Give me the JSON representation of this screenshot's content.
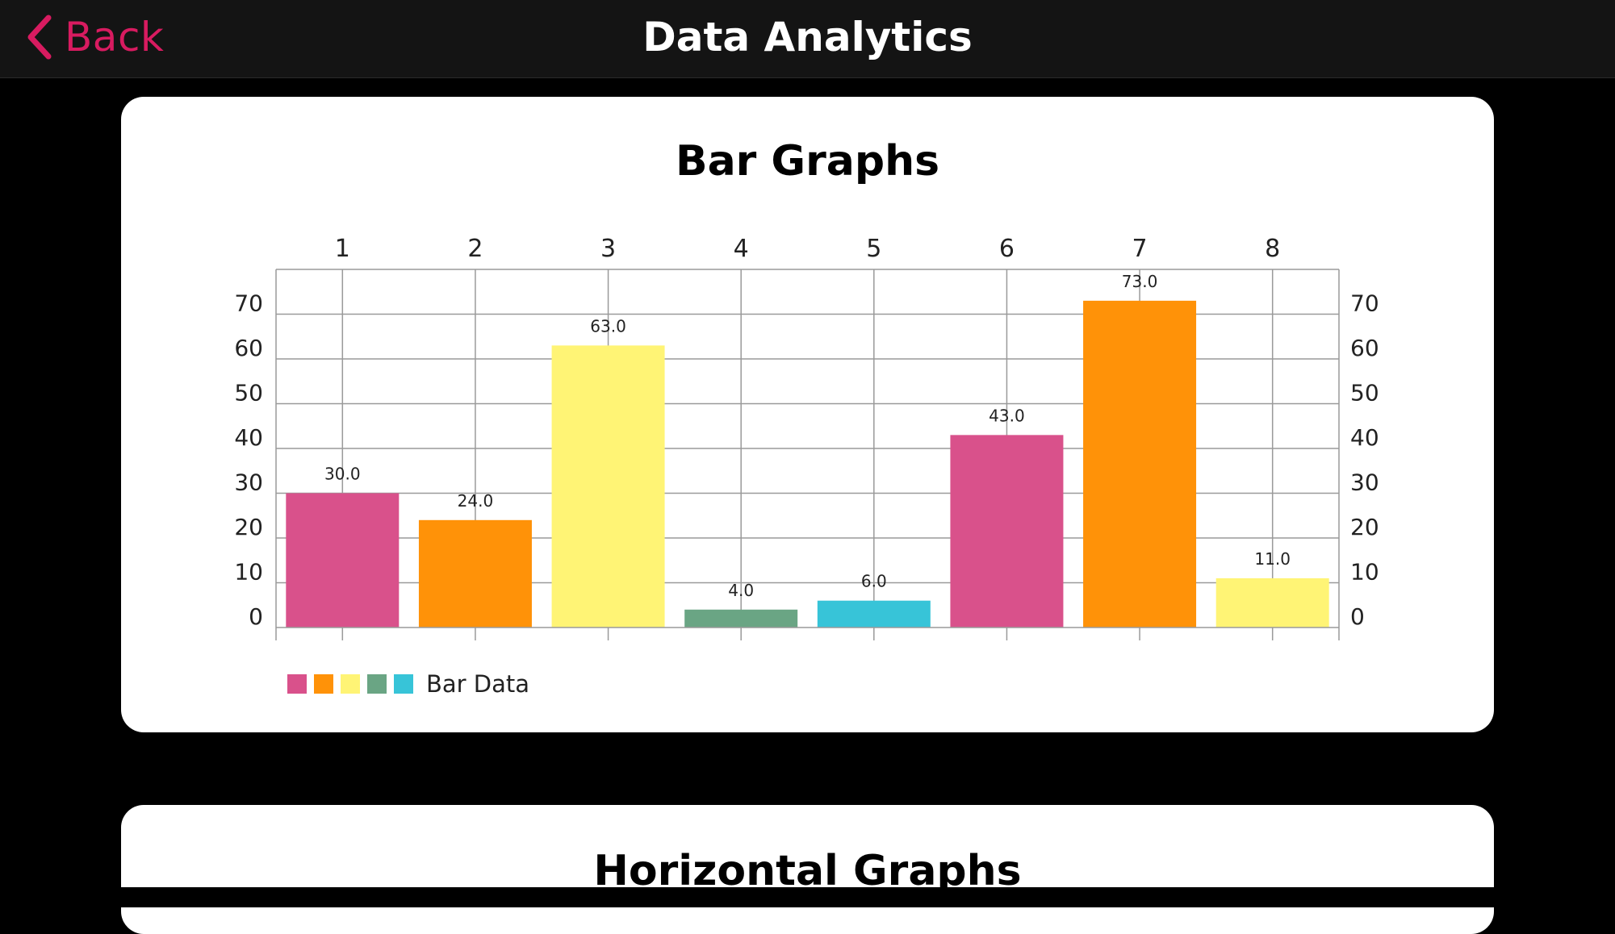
{
  "navbar": {
    "back_label": "Back",
    "title": "Data Analytics"
  },
  "card1": {
    "title": "Bar Graphs"
  },
  "card2": {
    "title": "Horizontal Graphs"
  },
  "chart_data": {
    "type": "bar",
    "categories": [
      "1",
      "2",
      "3",
      "4",
      "5",
      "6",
      "7",
      "8"
    ],
    "values": [
      30,
      24,
      63,
      4,
      6,
      43,
      73,
      11
    ],
    "value_labels": [
      "30.0",
      "24.0",
      "63.0",
      "4.0",
      "6.0",
      "43.0",
      "73.0",
      "11.0"
    ],
    "colors": [
      "#d9518b",
      "#ff9208",
      "#fff475",
      "#6aa584",
      "#37c4d8",
      "#d9518b",
      "#ff9208",
      "#fff475"
    ],
    "yticks": [
      0,
      10,
      20,
      30,
      40,
      50,
      60,
      70
    ],
    "ylim": [
      0,
      80
    ],
    "y_axis_left": true,
    "y_axis_right": true,
    "x_axis_position": "top",
    "grid": true,
    "legend": {
      "label": "Bar Data",
      "colors": [
        "#d9518b",
        "#ff9208",
        "#fff475",
        "#6aa584",
        "#37c4d8"
      ],
      "position": "bottom-left"
    }
  },
  "colors": {
    "accent": "#d81b60",
    "navbar_bg": "#141414",
    "page_bg": "#000000",
    "card_bg": "#ffffff"
  },
  "icons": {
    "back": "chevron-left-icon"
  }
}
